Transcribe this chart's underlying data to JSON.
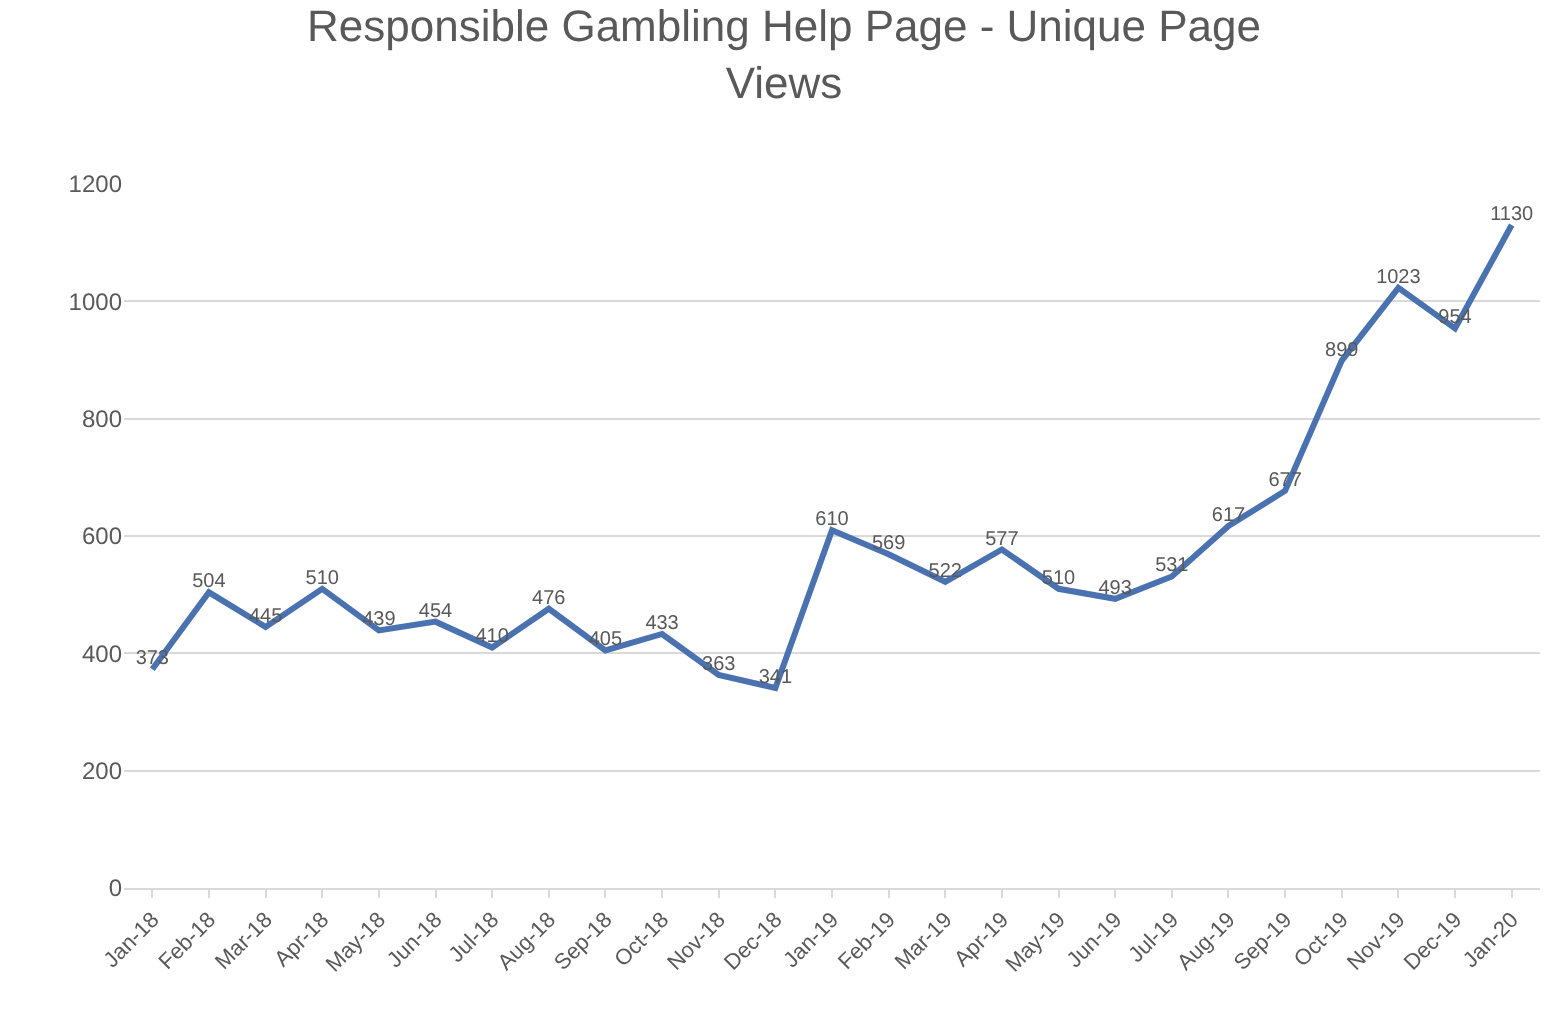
{
  "chart_data": {
    "type": "line",
    "title": "Responsible Gambling Help Page - Unique Page Views",
    "categories": [
      "Jan-18",
      "Feb-18",
      "Mar-18",
      "Apr-18",
      "May-18",
      "Jun-18",
      "Jul-18",
      "Aug-18",
      "Sep-18",
      "Oct-18",
      "Nov-18",
      "Dec-18",
      "Jan-19",
      "Feb-19",
      "Mar-19",
      "Apr-19",
      "May-19",
      "Jun-19",
      "Jul-19",
      "Aug-19",
      "Sep-19",
      "Oct-19",
      "Nov-19",
      "Dec-19",
      "Jan-20"
    ],
    "series": [
      {
        "color": "#4a72b0",
        "values": [
          373,
          504,
          445,
          510,
          439,
          454,
          410,
          476,
          405,
          433,
          363,
          341,
          610,
          569,
          522,
          577,
          510,
          493,
          531,
          617,
          677,
          899,
          1023,
          954,
          1130
        ]
      }
    ],
    "ylim": [
      0,
      1200
    ],
    "yticks": [
      0,
      200,
      400,
      600,
      800,
      1000,
      1200
    ],
    "grid": "y",
    "data_labels": true,
    "marker": "none",
    "line_style": "solid",
    "legend": false
  }
}
